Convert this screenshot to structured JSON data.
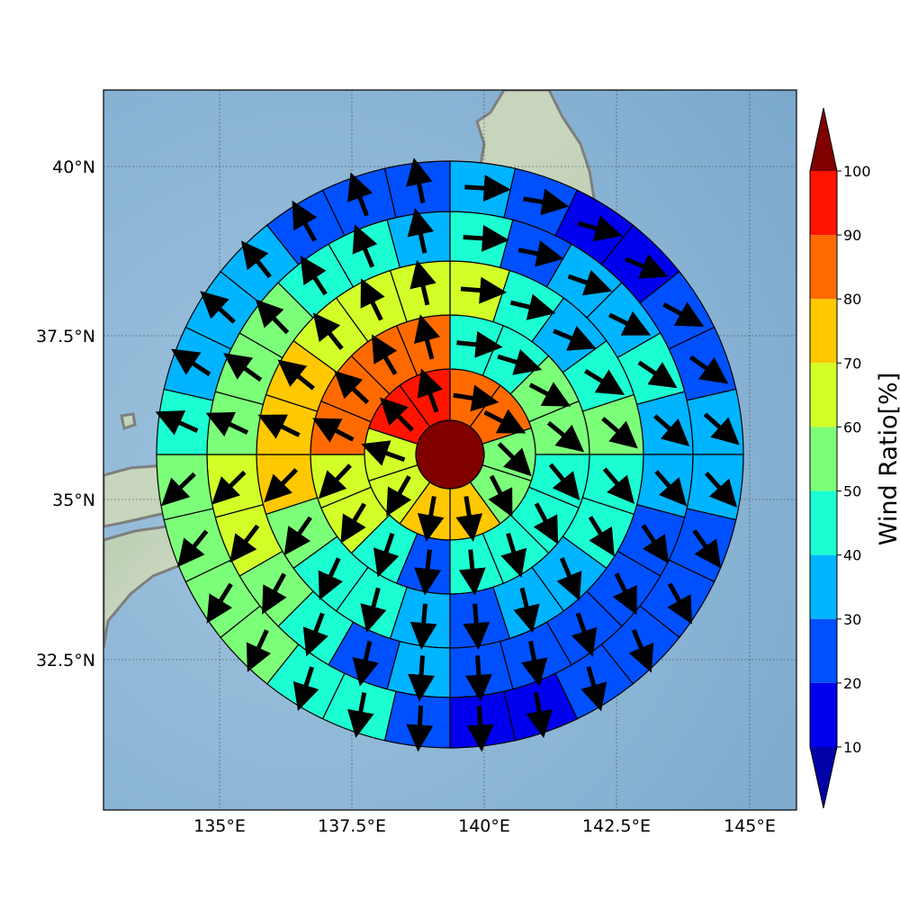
{
  "chart_data": {
    "type": "map",
    "lon_ticks": [
      "135°E",
      "137.5°E",
      "140°E",
      "142.5°E",
      "145°E"
    ],
    "lat_ticks": [
      "40°N",
      "37.5°N",
      "35°N",
      "32.5°N"
    ],
    "colorbar": {
      "label": "Wind Ratio[%]",
      "ticks": [
        "10",
        "20",
        "30",
        "40",
        "50",
        "60",
        "70",
        "80",
        "90",
        "100"
      ],
      "colors": [
        "#0000a8",
        "#0000ee",
        "#0050ff",
        "#00b4ff",
        "#1cffd2",
        "#7cff79",
        "#d2ff28",
        "#ffc800",
        "#ff6a00",
        "#ff1400",
        "#800000"
      ],
      "extend": "both"
    },
    "center": {
      "value_range": "> 100"
    },
    "rings": [
      {
        "name": "ring1",
        "values": [
          85,
          85,
          55,
          55,
          75,
          75,
          65,
          65,
          95,
          95
        ]
      },
      {
        "name": "ring2",
        "values": [
          45,
          45,
          55,
          55,
          45,
          45,
          45,
          45,
          25,
          45,
          65,
          65,
          85,
          85,
          85,
          85
        ]
      },
      {
        "name": "ring3",
        "values": [
          65,
          45,
          35,
          45,
          55,
          45,
          45,
          35,
          35,
          25,
          35,
          45,
          45,
          55,
          75,
          75,
          75,
          65,
          65,
          65
        ]
      },
      {
        "name": "ring4",
        "values": [
          45,
          25,
          35,
          35,
          45,
          35,
          35,
          25,
          25,
          25,
          25,
          25,
          35,
          25,
          45,
          55,
          65,
          65,
          55,
          55,
          55,
          45,
          45,
          35
        ]
      },
      {
        "name": "ring5",
        "values": [
          35,
          25,
          15,
          15,
          25,
          25,
          35,
          35,
          25,
          25,
          25,
          25,
          15,
          15,
          25,
          45,
          45,
          55,
          55,
          55,
          55,
          45,
          35,
          35,
          35,
          25,
          25,
          25
        ]
      }
    ]
  }
}
